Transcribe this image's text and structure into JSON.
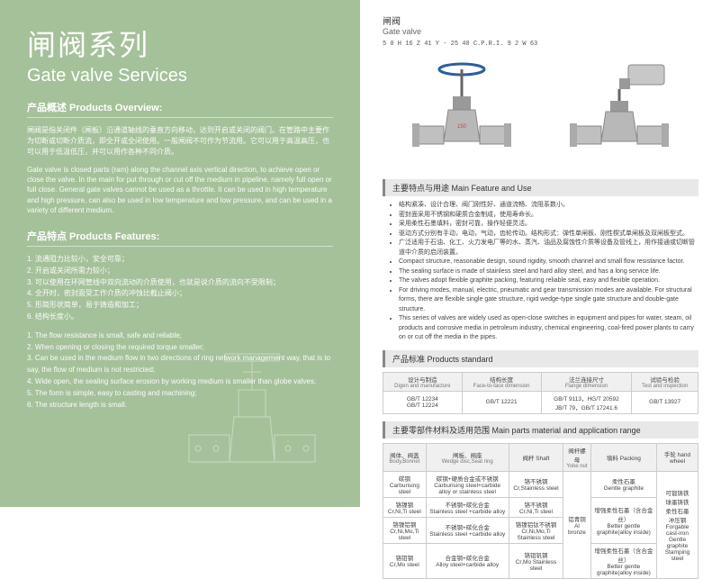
{
  "left": {
    "title_cn": "闸阀系列",
    "title_en": "Gate valve Services",
    "overview_head": "产品概述 Products Overview:",
    "overview_cn": "闸阀是指关闭件（闸板）沿通道轴线的垂直方向移动，达到开启或关闭的阀门。在管路中主要作为切断或切断介质流，即全开或全闭使用。一般闸阀不可作为节流用。它可以用于高温高压，也可以用于低温低压，并可以用作各种不同介质。",
    "overview_en": "Gate valve is closed parts (ram) along the channel axis vertical direction, to achieve open or close the valve. In the main for put through or cut off the medium in pipeline, namely full open or full close. General gate valves cannot be used as a throttle. It can be used in high temperature and high pressure, can also be used in low temperature and low pressure, and can be used in a variety of different medium.",
    "features_head": "产品特点 Products Features:",
    "features_cn": [
      "1. 流通阻力比较小，安全可靠；",
      "2. 开启或关闭所需力较小；",
      "3. 可以使用在环网管线中双向流动的介质使用，也就是说介质的流向不受限制；",
      "4. 全开时，密封面受工作介质的冲蚀比截止阀小；",
      "5. 形简形状简单，易于铸造和加工；",
      "6. 结构长度小。"
    ],
    "features_en": [
      "1. The flow resistance is small, safe and reliable;",
      "2. When opening or closing the required torque smaller;",
      "3. Can be used in the medium flow in two directions of ring network management way, that is to say, the flow of medium is not restricted;",
      "4. Wide open, the sealing surface erosion by working medium is smaller than globe valves;",
      "5. The form is simple, easy to casting and machining;",
      "6. The structure length is small."
    ]
  },
  "right": {
    "title_cn": "闸阀",
    "title_en": "Gate valve",
    "model": "5   0 H      16\nZ 41 Y - 25 40 C.P.R.I.\n9   2 W     63",
    "feature_head": "主要特点与用途 Main Feature and Use",
    "bullets": [
      "结构紧凑、设计合理、阀门刚性好、通道流畅、流阻系数小。",
      "密封面采用不锈钢和硬质合金制成，使用寿命长。",
      "采用柔性石墨填料，密封可靠，操作轻便灵活。",
      "驱动方式分别有手动，电动，气动，齿轮传动。结构形式：弹性单闸板、刚性楔式单闸板及双闸板型式。",
      "广泛适用于石油、化工、火力发电厂等的水、蒸汽、油品及腐蚀性介质等设备及管线上，用作接通或切断管道中介质的启闭装置。",
      "Compact structure, reasonable design, sound rigidity, smooth channel and small flow resistance factor.",
      "The sealing surface is made of stainless steel and hard alloy steel, and has a long service life.",
      "The valves adopt flexible graphite packing, featuring reliable seal, easy and flexible operation.",
      "For driving modes, manual, electric, pneumatic and gear transmission modes are available. For structural forms, there are flexible single gate structure, rigid wedge-type single gate structure and double-gate structure.",
      "This series of valves are widely used as open-close switches in equipment and pipes for water, steam, oil products and corrosive media in petroleum industry, chemical engineering, coal-fired power plants to carry on or cut off the media in the pipes."
    ],
    "std_head": "产品标准 Products standard",
    "std_headers": [
      "设计与制造",
      "结构长度",
      "法兰连接尺寸",
      "试验与检验"
    ],
    "std_headers_en": [
      "Digen and manufacture",
      "Face-to-face dimension",
      "Flange dimension",
      "Test and inspection"
    ],
    "std_row": [
      "GB/T 12234\nGB/T 12224",
      "GB/T 12221",
      "GB/T 9113，HG/T 20592\nJB/T 79，GB/T 17241.6",
      "GB/T 13927"
    ],
    "mat_head": "主要零部件材料及适用范围 Main parts material and application range",
    "mat_headers": [
      "阀体、阀盖",
      "闸板、阀座",
      "阀杆 Shaft",
      "阀杆螺母",
      "填料 Packing",
      "手轮 hand wheel"
    ],
    "mat_headers_en": [
      "Body,Bonnet",
      "Wedge disc,Seat ring",
      "",
      "Yoke nut",
      "",
      ""
    ],
    "mat_rows": [
      [
        "碳钢\nCarburising steel",
        "碳钢+硬质合金或不锈钢\nCarburising steel+carbide alloy or stainless steel",
        "铬不锈钢\nCr,Stainless steel",
        "",
        "柔性石墨\nGentle graphite",
        ""
      ],
      [
        "铬镍钢\nCr,Ni,Ti steel",
        "不锈钢+碳化合金\nStainless steel +carbide alloy",
        "铬不锈钢\nCr,Ni,Ti steel",
        "铝青铜\nAl bronze",
        "增强柔性石墨（含合金丝）\nBetter gentle graphite(alloy inside)",
        "可锻铸铁\n球墨铸铁\n柔性石墨\n冲压钢\nForgable cast-iron\nGentle graphite\nStamping steel"
      ],
      [
        "铬镍铝钢\nCr,Ni,Mo,Ti steel",
        "不锈钢+碳化合金\nStainless steel +carbide alloy",
        "铬镍铝钛不锈钢\nCr,Ni,Mo,Ti Stainless steel",
        "",
        "",
        ""
      ],
      [
        "铬钼钢\nCr,Mo steel",
        "合金钢+碳化合金\nAlloy steel+carbide alloy",
        "铬钼钒钢\nCr,Mo Stainless steel",
        "",
        "增强柔性石墨（含合金丝）\nBetter gentle graphite(alloy inside)",
        ""
      ]
    ]
  },
  "colors": {
    "left_bg": "#a5c19a",
    "bar_bg": "#e8e8e8",
    "valve_blue": "#2a5f9e",
    "valve_body": "#b8b8b8"
  }
}
